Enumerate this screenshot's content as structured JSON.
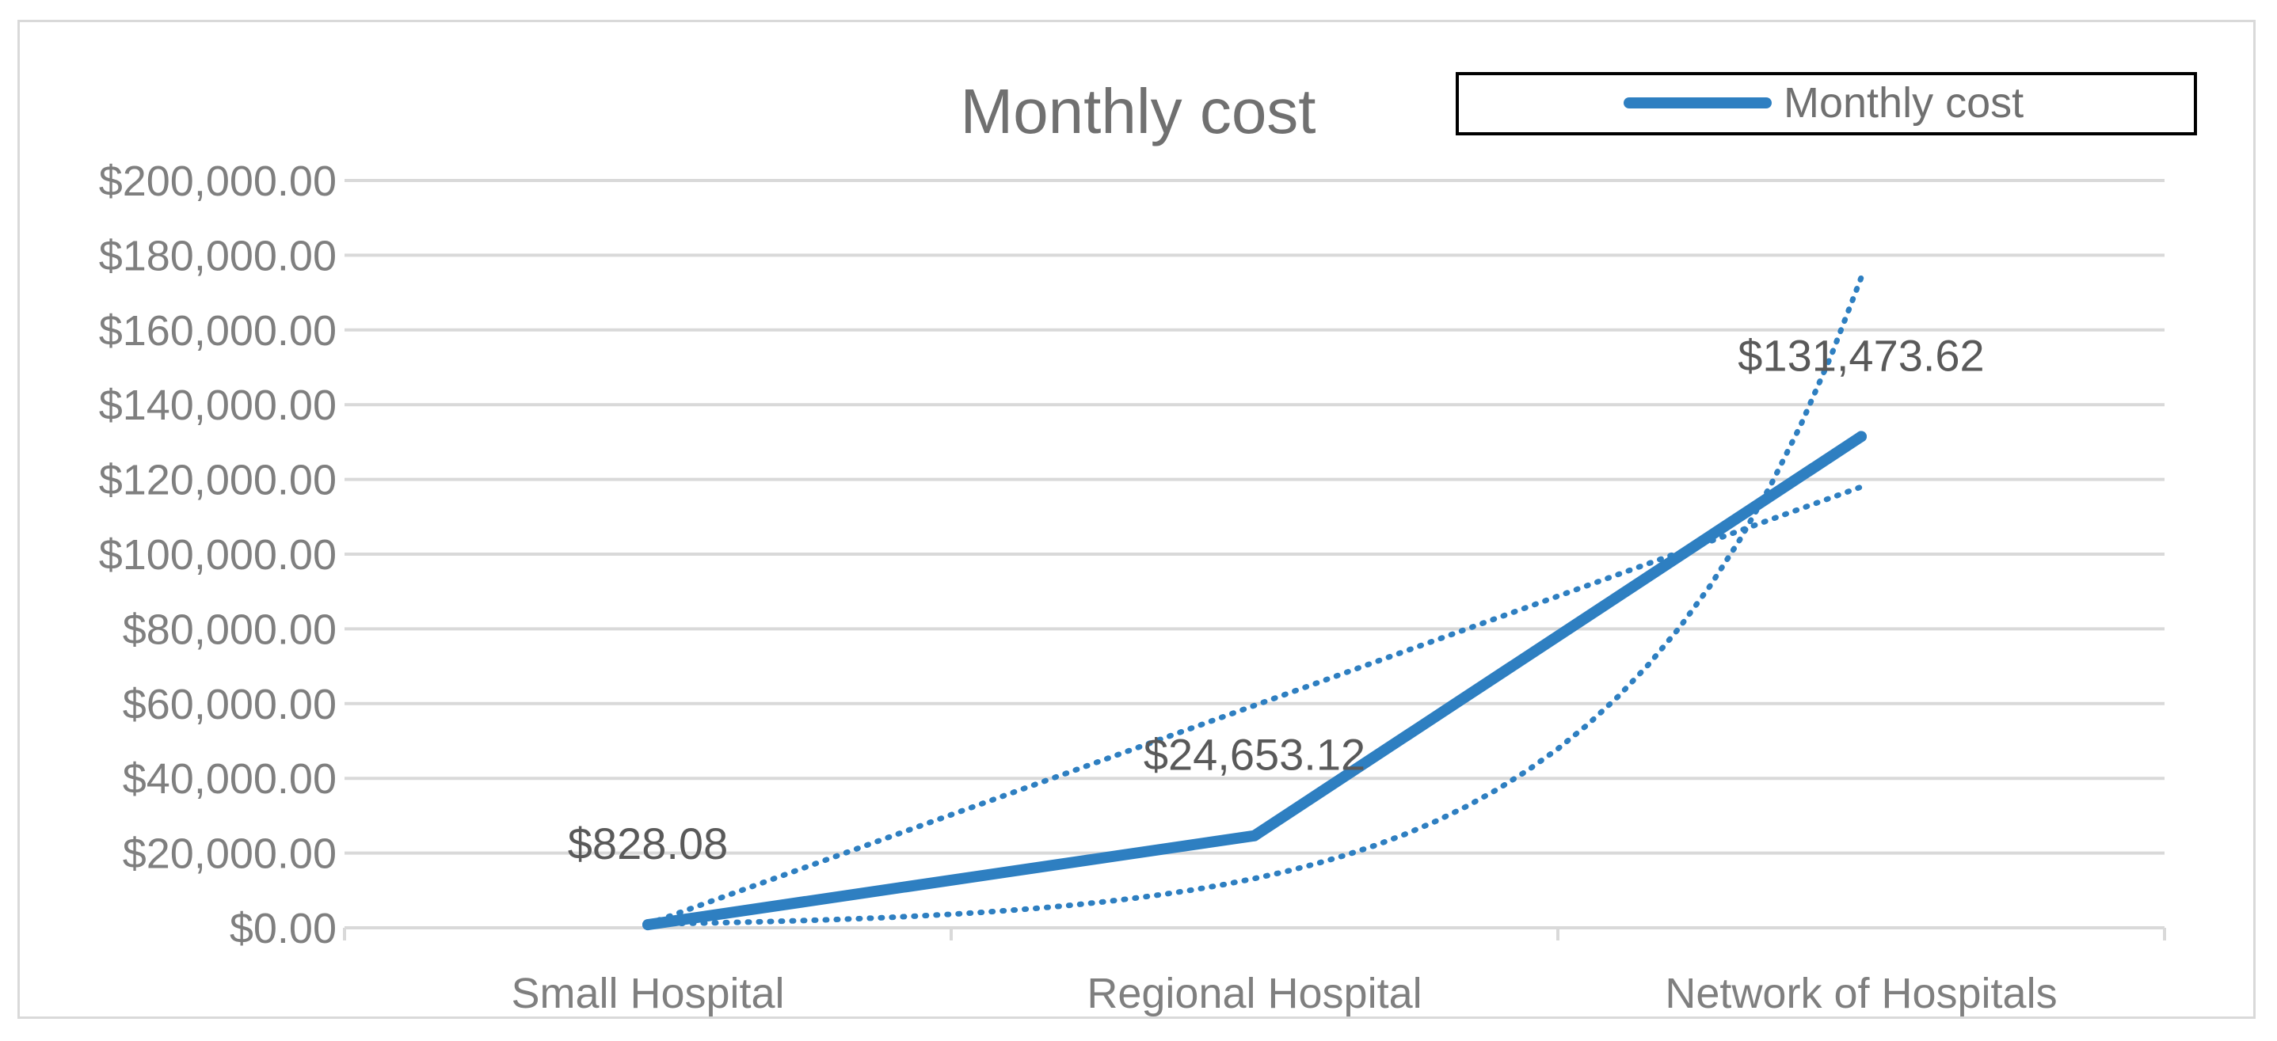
{
  "chart_data": {
    "type": "line",
    "title": "Monthly cost",
    "categories": [
      "Small Hospital",
      "Regional Hospital",
      "Network of Hospitals"
    ],
    "series": [
      {
        "name": "Monthly cost",
        "values": [
          828.08,
          24653.12,
          131473.62
        ],
        "labels": [
          "$828.08",
          "$24,653.12",
          "$131,473.62"
        ],
        "color": "#2e7fc1"
      }
    ],
    "trendlines": [
      {
        "kind": "linear",
        "values": [
          1000,
          60000,
          118000
        ],
        "color": "#2e7fc1"
      },
      {
        "kind": "exponential",
        "values": [
          1000,
          14000,
          174000
        ],
        "color": "#2e7fc1"
      }
    ],
    "ylim": [
      0,
      200000
    ],
    "yticks": [
      0,
      20000,
      40000,
      60000,
      80000,
      100000,
      120000,
      140000,
      160000,
      180000,
      200000
    ],
    "ytick_labels": [
      "$0.00",
      "$20,000.00",
      "$40,000.00",
      "$60,000.00",
      "$80,000.00",
      "$100,000.00",
      "$120,000.00",
      "$140,000.00",
      "$160,000.00",
      "$180,000.00",
      "$200,000.00"
    ],
    "legend": {
      "position": "top-right",
      "entries": [
        "Monthly cost"
      ]
    },
    "xlabel": "",
    "ylabel": "",
    "grid": true
  }
}
